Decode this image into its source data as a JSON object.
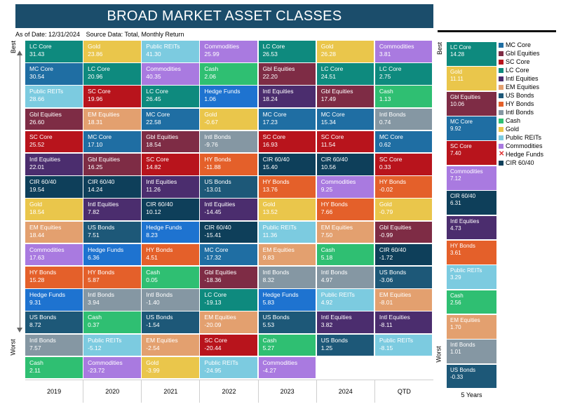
{
  "title": "BROAD MARKET ASSET CLASSES",
  "as_of": "As of Date: 12/31/2024",
  "source": "Source Data: Total, Monthly Return",
  "labels": {
    "best": "Best",
    "worst": "Worst",
    "five_years": "5 Years"
  },
  "colors": {
    "MC Core": "#1f6ea3",
    "Gbl Equities": "#7e2c45",
    "SC Core": "#b8141c",
    "LC Core": "#0e8a7e",
    "Intl Equities": "#4b2d6e",
    "EM Equities": "#e3a06f",
    "US Bonds": "#1d5878",
    "HY Bonds": "#e4602a",
    "Intl Bonds": "#8597a3",
    "Cash": "#2fbf72",
    "Gold": "#eac64b",
    "Public REITs": "#7ccbe0",
    "Commodities": "#a97ae0",
    "Hedge Funds": "#1e73d0",
    "CIR 60/40": "#0e3f5a"
  },
  "chart_data": {
    "type": "table",
    "title": "BROAD MARKET ASSET CLASSES",
    "columns": [
      "2019",
      "2020",
      "2021",
      "2022",
      "2023",
      "2024",
      "QTD"
    ],
    "rows_max": 15,
    "data": [
      [
        {
          "name": "LC Core",
          "value": "31.43"
        },
        {
          "name": "MC Core",
          "value": "30.54"
        },
        {
          "name": "Public REITs",
          "value": "28.66"
        },
        {
          "name": "Gbl Equities",
          "value": "26.60"
        },
        {
          "name": "SC Core",
          "value": "25.52"
        },
        {
          "name": "Intl Equities",
          "value": "22.01"
        },
        {
          "name": "CIR 60/40",
          "value": "19.54"
        },
        {
          "name": "Gold",
          "value": "18.54"
        },
        {
          "name": "EM Equities",
          "value": "18.44"
        },
        {
          "name": "Commodities",
          "value": "17.63"
        },
        {
          "name": "HY Bonds",
          "value": "15.28"
        },
        {
          "name": "Hedge Funds",
          "value": "9.31"
        },
        {
          "name": "US Bonds",
          "value": "8.72"
        },
        {
          "name": "Intl Bonds",
          "value": "7.57"
        },
        {
          "name": "Cash",
          "value": "2.11"
        }
      ],
      [
        {
          "name": "Gold",
          "value": "23.86"
        },
        {
          "name": "LC Core",
          "value": "20.96"
        },
        {
          "name": "SC Core",
          "value": "19.96"
        },
        {
          "name": "EM Equities",
          "value": "18.31"
        },
        {
          "name": "MC Core",
          "value": "17.10"
        },
        {
          "name": "Gbl Equities",
          "value": "16.25"
        },
        {
          "name": "CIR 60/40",
          "value": "14.24"
        },
        {
          "name": "Intl Equities",
          "value": "7.82"
        },
        {
          "name": "US Bonds",
          "value": "7.51"
        },
        {
          "name": "Hedge Funds",
          "value": "6.36"
        },
        {
          "name": "HY Bonds",
          "value": "5.87"
        },
        {
          "name": "Intl Bonds",
          "value": "3.94"
        },
        {
          "name": "Cash",
          "value": "0.37"
        },
        {
          "name": "Public REITs",
          "value": "-5.12"
        },
        {
          "name": "Commodities",
          "value": "-23.72"
        }
      ],
      [
        {
          "name": "Public REITs",
          "value": "41.30"
        },
        {
          "name": "Commodities",
          "value": "40.35"
        },
        {
          "name": "LC Core",
          "value": "26.45"
        },
        {
          "name": "MC Core",
          "value": "22.58"
        },
        {
          "name": "Gbl Equities",
          "value": "18.54"
        },
        {
          "name": "SC Core",
          "value": "14.82"
        },
        {
          "name": "Intl Equities",
          "value": "11.26"
        },
        {
          "name": "CIR 60/40",
          "value": "10.12"
        },
        {
          "name": "Hedge Funds",
          "value": "8.23"
        },
        {
          "name": "HY Bonds",
          "value": "4.51"
        },
        {
          "name": "Cash",
          "value": "0.05"
        },
        {
          "name": "Intl Bonds",
          "value": "-1.40"
        },
        {
          "name": "US Bonds",
          "value": "-1.54"
        },
        {
          "name": "EM Equities",
          "value": "-2.54"
        },
        {
          "name": "Gold",
          "value": "-3.99"
        }
      ],
      [
        {
          "name": "Commodities",
          "value": "25.99"
        },
        {
          "name": "Cash",
          "value": "2.06"
        },
        {
          "name": "Hedge Funds",
          "value": "1.06"
        },
        {
          "name": "Gold",
          "value": "-0.67"
        },
        {
          "name": "Intl Bonds",
          "value": "-9.76"
        },
        {
          "name": "HY Bonds",
          "value": "-11.88"
        },
        {
          "name": "US Bonds",
          "value": "-13.01"
        },
        {
          "name": "Intl Equities",
          "value": "-14.45"
        },
        {
          "name": "CIR 60/40",
          "value": "-15.41"
        },
        {
          "name": "MC Core",
          "value": "-17.32"
        },
        {
          "name": "Gbl Equities",
          "value": "-18.36"
        },
        {
          "name": "LC Core",
          "value": "-19.13"
        },
        {
          "name": "EM Equities",
          "value": "-20.09"
        },
        {
          "name": "SC Core",
          "value": "-20.44"
        },
        {
          "name": "Public REITs",
          "value": "-24.95"
        }
      ],
      [
        {
          "name": "LC Core",
          "value": "26.53"
        },
        {
          "name": "Gbl Equities",
          "value": "22.20"
        },
        {
          "name": "Intl Equities",
          "value": "18.24"
        },
        {
          "name": "MC Core",
          "value": "17.23"
        },
        {
          "name": "SC Core",
          "value": "16.93"
        },
        {
          "name": "CIR 60/40",
          "value": "15.40"
        },
        {
          "name": "HY Bonds",
          "value": "13.76"
        },
        {
          "name": "Gold",
          "value": "13.52"
        },
        {
          "name": "Public REITs",
          "value": "11.36"
        },
        {
          "name": "EM Equities",
          "value": "9.83"
        },
        {
          "name": "Intl Bonds",
          "value": "8.32"
        },
        {
          "name": "Hedge Funds",
          "value": "5.83"
        },
        {
          "name": "US Bonds",
          "value": "5.53"
        },
        {
          "name": "Cash",
          "value": "5.27"
        },
        {
          "name": "Commodities",
          "value": "-4.27"
        }
      ],
      [
        {
          "name": "Gold",
          "value": "26.28"
        },
        {
          "name": "LC Core",
          "value": "24.51"
        },
        {
          "name": "Gbl Equities",
          "value": "17.49"
        },
        {
          "name": "MC Core",
          "value": "15.34"
        },
        {
          "name": "SC Core",
          "value": "11.54"
        },
        {
          "name": "CIR 60/40",
          "value": "10.56"
        },
        {
          "name": "Commodities",
          "value": "9.25"
        },
        {
          "name": "HY Bonds",
          "value": "7.66"
        },
        {
          "name": "EM Equities",
          "value": "7.50"
        },
        {
          "name": "Cash",
          "value": "5.18"
        },
        {
          "name": "Intl Bonds",
          "value": "4.97"
        },
        {
          "name": "Public REITs",
          "value": "4.92"
        },
        {
          "name": "Intl Equities",
          "value": "3.82"
        },
        {
          "name": "US Bonds",
          "value": "1.25"
        }
      ],
      [
        {
          "name": "Commodities",
          "value": "3.81"
        },
        {
          "name": "LC Core",
          "value": "2.75"
        },
        {
          "name": "Cash",
          "value": "1.13"
        },
        {
          "name": "Intl Bonds",
          "value": "0.74"
        },
        {
          "name": "MC Core",
          "value": "0.62"
        },
        {
          "name": "SC Core",
          "value": "0.33"
        },
        {
          "name": "HY Bonds",
          "value": "-0.02"
        },
        {
          "name": "Gold",
          "value": "-0.79"
        },
        {
          "name": "Gbl Equities",
          "value": "-0.99"
        },
        {
          "name": "CIR 60/40",
          "value": "-1.72"
        },
        {
          "name": "US Bonds",
          "value": "-3.06"
        },
        {
          "name": "EM Equities",
          "value": "-8.01"
        },
        {
          "name": "Intl Equities",
          "value": "-8.11"
        },
        {
          "name": "Public REITs",
          "value": "-8.15"
        }
      ]
    ],
    "five_year": [
      {
        "name": "LC Core",
        "value": "14.28"
      },
      {
        "name": "Gold",
        "value": "11.11"
      },
      {
        "name": "Gbl Equities",
        "value": "10.06"
      },
      {
        "name": "MC Core",
        "value": "9.92"
      },
      {
        "name": "SC Core",
        "value": "7.40"
      },
      {
        "name": "Commodities",
        "value": "7.12"
      },
      {
        "name": "CIR 60/40",
        "value": "6.31"
      },
      {
        "name": "Intl Equities",
        "value": "4.73"
      },
      {
        "name": "HY Bonds",
        "value": "3.61"
      },
      {
        "name": "Public REITs",
        "value": "3.29"
      },
      {
        "name": "Cash",
        "value": "2.56"
      },
      {
        "name": "EM Equities",
        "value": "1.70"
      },
      {
        "name": "Intl Bonds",
        "value": "1.01"
      },
      {
        "name": "US Bonds",
        "value": "-0.33"
      }
    ]
  },
  "legend": [
    {
      "name": "MC Core",
      "marker": "square"
    },
    {
      "name": "Gbl Equities",
      "marker": "square"
    },
    {
      "name": "SC Core",
      "marker": "square"
    },
    {
      "name": "LC Core",
      "marker": "square"
    },
    {
      "name": "Intl Equities",
      "marker": "square"
    },
    {
      "name": "EM Equities",
      "marker": "square"
    },
    {
      "name": "US Bonds",
      "marker": "square"
    },
    {
      "name": "HY Bonds",
      "marker": "square"
    },
    {
      "name": "Intl Bonds",
      "marker": "square"
    },
    {
      "name": "Cash",
      "marker": "square"
    },
    {
      "name": "Gold",
      "marker": "square"
    },
    {
      "name": "Public REITs",
      "marker": "square"
    },
    {
      "name": "Commodities",
      "marker": "square"
    },
    {
      "name": "Hedge Funds",
      "marker": "x"
    },
    {
      "name": "CIR 60/40",
      "marker": "square"
    }
  ]
}
